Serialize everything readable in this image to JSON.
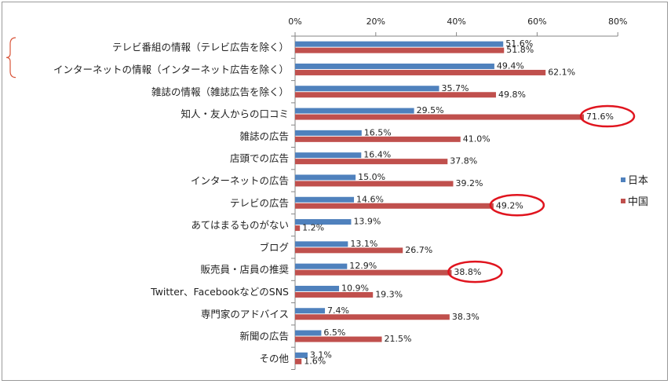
{
  "chart_data": {
    "type": "bar",
    "orientation": "horizontal",
    "title": "",
    "xlabel": "",
    "ylabel": "",
    "xlim": [
      0,
      80
    ],
    "xticks": [
      0,
      20,
      40,
      60,
      80
    ],
    "tick_labels": [
      "0%",
      "20%",
      "40%",
      "60%",
      "80%"
    ],
    "grid": false,
    "legend_position": "right",
    "categories": [
      "テレビ番組の情報（テレビ広告を除く）",
      "インターネットの情報（インターネット広告を除く）",
      "雑誌の情報（雑誌広告を除く）",
      "知人・友人からの口コミ",
      "雑誌の広告",
      "店頭での広告",
      "インターネットの広告",
      "テレビの広告",
      "あてはまるものがない",
      "ブログ",
      "販売員・店員の推奨",
      "Twitter、FacebookなどのSNS",
      "専門家のアドバイス",
      "新聞の広告",
      "その他"
    ],
    "series": [
      {
        "name": "日本",
        "color": "#4f81bd",
        "values": [
          51.6,
          49.4,
          35.7,
          29.5,
          16.5,
          16.4,
          15.0,
          14.6,
          13.9,
          13.1,
          12.9,
          10.9,
          7.4,
          6.5,
          3.1
        ],
        "labels": [
          "51.6%",
          "49.4%",
          "35.7%",
          "29.5%",
          "16.5%",
          "16.4%",
          "15.0%",
          "14.6%",
          "13.9%",
          "13.1%",
          "12.9%",
          "10.9%",
          "7.4%",
          "6.5%",
          "3.1%"
        ]
      },
      {
        "name": "中国",
        "color": "#c0504d",
        "values": [
          51.8,
          62.1,
          49.8,
          71.6,
          41.0,
          37.8,
          39.2,
          49.2,
          1.2,
          26.7,
          38.8,
          19.3,
          38.3,
          21.5,
          1.6
        ],
        "labels": [
          "51.8%",
          "62.1%",
          "49.8%",
          "71.6%",
          "41.0%",
          "37.8%",
          "39.2%",
          "49.2%",
          "1.2%",
          "26.7%",
          "38.8%",
          "19.3%",
          "38.3%",
          "21.5%",
          "1.6%"
        ]
      }
    ],
    "highlight_circles": [
      {
        "category_index": 3,
        "series": "中国"
      },
      {
        "category_index": 7,
        "series": "中国"
      },
      {
        "category_index": 10,
        "series": "中国"
      }
    ],
    "bracket_category_indices": [
      0,
      1
    ],
    "highlight_color": "#e0141e",
    "bracket_color": "#d9553a"
  }
}
